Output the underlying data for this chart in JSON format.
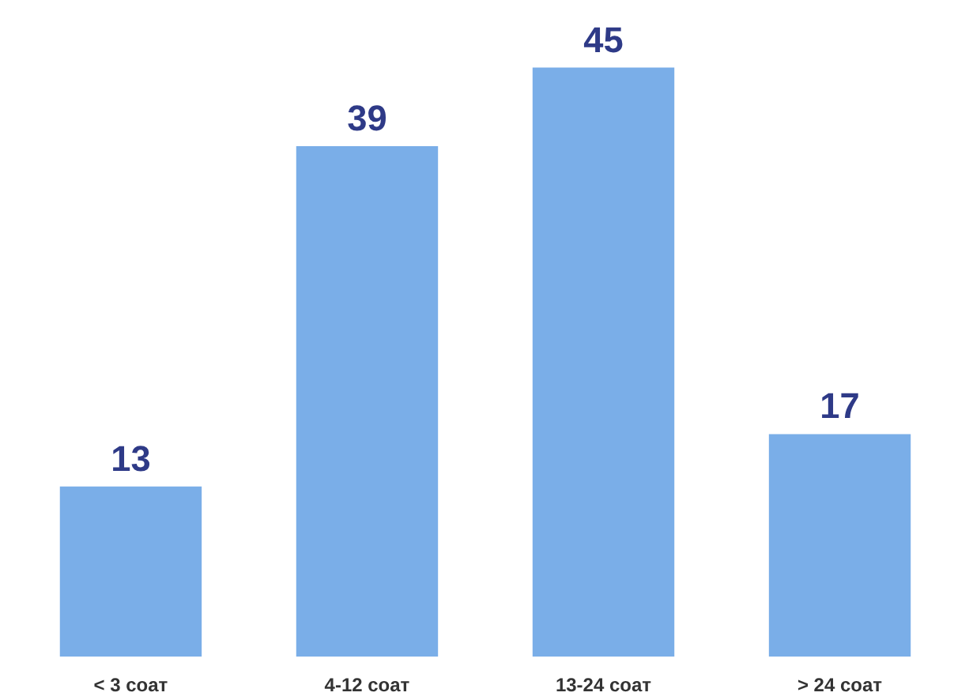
{
  "chart_data": {
    "type": "bar",
    "categories": [
      "< 3 соат",
      "4-12 соат",
      "13-24 соат",
      "> 24 соат"
    ],
    "values": [
      13,
      39,
      45,
      17
    ],
    "color": "#7aaee8",
    "data_labels": true
  }
}
